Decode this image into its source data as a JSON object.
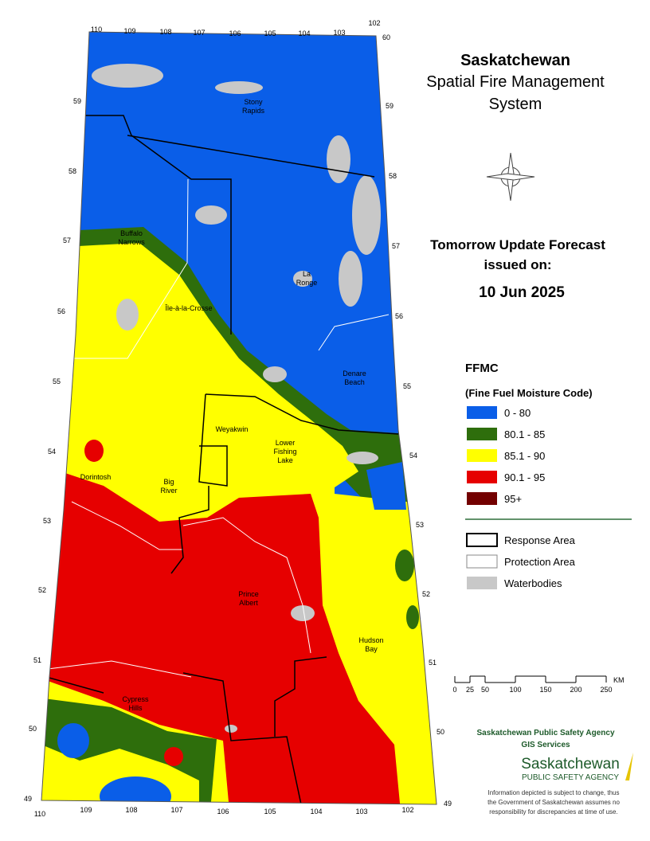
{
  "title": {
    "line1": "Saskatchewan",
    "line2": "Spatial Fire Management",
    "line3": "System"
  },
  "forecast": {
    "line1": "Tomorrow Update Forecast",
    "line2": "issued on:",
    "date": "10 Jun 2025"
  },
  "legend": {
    "title": "FFMC",
    "subtitle": "(Fine Fuel Moisture Code)",
    "items": [
      {
        "label": "0 - 80",
        "color": "#0a5ee8"
      },
      {
        "label": "80.1 - 85",
        "color": "#2e6e0c"
      },
      {
        "label": "85.1 - 90",
        "color": "#ffff00"
      },
      {
        "label": "90.1 - 95",
        "color": "#e60000"
      },
      {
        "label": "95+",
        "color": "#730000"
      }
    ]
  },
  "boundaries": [
    "Response Area",
    "Protection Area",
    "Waterbodies"
  ],
  "scale": {
    "ticks": [
      0,
      25,
      50,
      100,
      150,
      200,
      250
    ],
    "unit": "KM"
  },
  "agency": {
    "line1": "Saskatchewan Public Safety Agency",
    "line2": "GIS  Services"
  },
  "logo": {
    "line1": "Saskatchewan",
    "line2": "PUBLIC SAFETY AGENCY"
  },
  "disclaimer": [
    "Information depicted is subject to change, thus",
    "the Government of Saskatchewan assumes no",
    "responsibility for discrepancies at time of use."
  ],
  "places": [
    [
      "Stony",
      "Rapids"
    ],
    [
      "Buffalo",
      "Narrows"
    ],
    [
      "Île-à-la-Crosse"
    ],
    [
      "La",
      "Ronge"
    ],
    [
      "Denare",
      "Beach"
    ],
    [
      "Weyakwin"
    ],
    [
      "Lower",
      "Fishing",
      "Lake"
    ],
    [
      "Dorintosh"
    ],
    [
      "Big",
      "River"
    ],
    [
      "Prince",
      "Albert"
    ],
    [
      "Hudson",
      "Bay"
    ],
    [
      "Cypress",
      "Hills"
    ]
  ],
  "grid": {
    "lon_top": [
      110,
      109,
      108,
      107,
      106,
      105,
      104,
      103,
      102
    ],
    "lon_bottom": [
      110,
      109,
      108,
      107,
      106,
      105,
      104,
      103,
      102
    ],
    "lat_left": [
      59,
      58,
      57,
      56,
      55,
      54,
      53,
      52,
      51,
      50,
      49
    ],
    "lat_right": [
      60,
      59,
      58,
      57,
      56,
      55,
      54,
      53,
      52,
      51,
      50,
      49
    ]
  }
}
